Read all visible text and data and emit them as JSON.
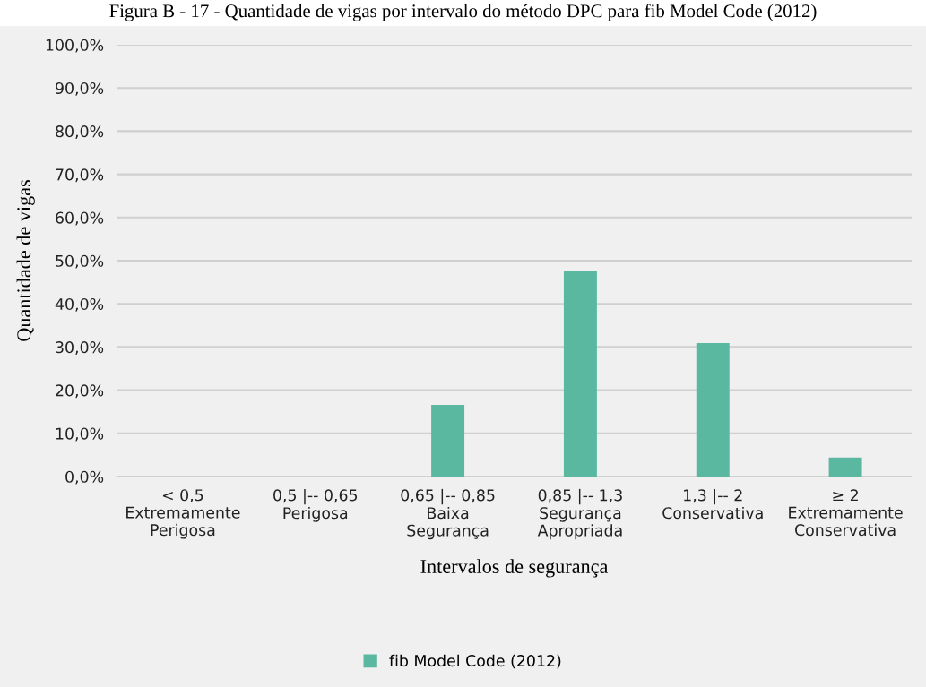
{
  "chart_data": {
    "type": "bar",
    "title": "Figura B - 17 - Quantidade de vigas por intervalo do método DPC para fib Model Code (2012)",
    "xlabel": "Intervalos de segurança",
    "ylabel": "Quantidade de vigas",
    "categories": [
      "< 0,5\nExtremamente\nPerigosa",
      "0,5 |-- 0,65\nPerigosa",
      "0,65 |-- 0,85\nBaixa\nSegurança",
      "0,85 |-- 1,3\nSegurança\nApropriada",
      "1,3 |-- 2\nConservativa",
      "≥ 2\nExtremamente\nConservativa"
    ],
    "series": [
      {
        "name": "fib Model Code (2012)",
        "color": "#5bb8a0",
        "values": [
          0,
          0,
          16.6,
          47.7,
          30.9,
          4.4
        ]
      }
    ],
    "ylim": [
      0,
      100
    ],
    "yticks": [
      {
        "value": 0,
        "label": "0,0%"
      },
      {
        "value": 10,
        "label": "10,0%"
      },
      {
        "value": 20,
        "label": "20,0%"
      },
      {
        "value": 30,
        "label": "30,0%"
      },
      {
        "value": 40,
        "label": "40,0%"
      },
      {
        "value": 50,
        "label": "50,0%"
      },
      {
        "value": 60,
        "label": "60,0%"
      },
      {
        "value": 70,
        "label": "70,0%"
      },
      {
        "value": 80,
        "label": "80,0%"
      },
      {
        "value": 90,
        "label": "90,0%"
      },
      {
        "value": 100,
        "label": "100,0%"
      }
    ],
    "grid": "y",
    "legend": "bottom"
  }
}
